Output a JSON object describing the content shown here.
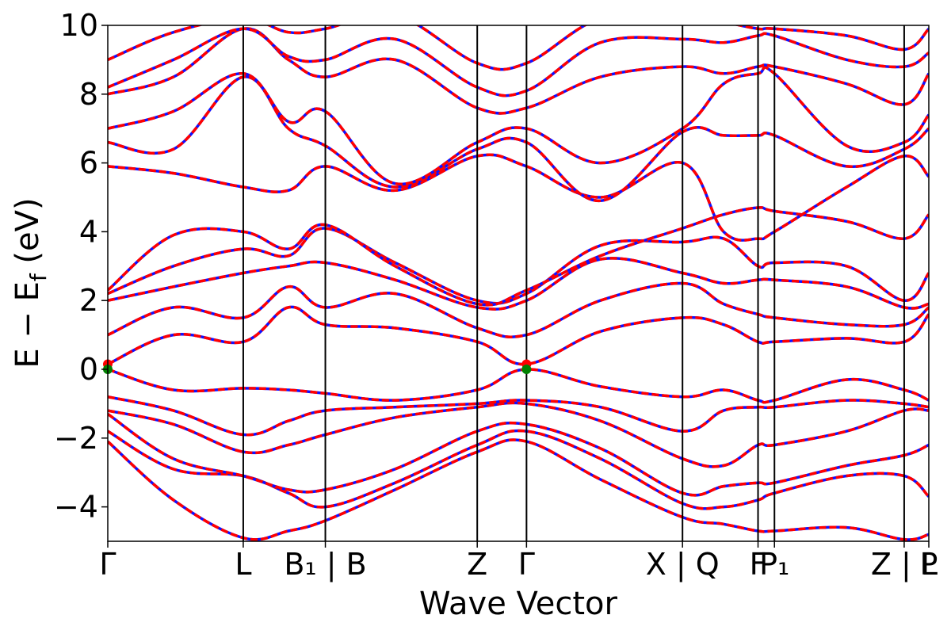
{
  "chart_data": {
    "type": "line",
    "xlabel": "Wave Vector",
    "ylabel": "E − E_f (eV)",
    "ylabel_main": "E  −  E",
    "ylabel_sub": "f",
    "ylabel_unit": " (eV)",
    "ylim": [
      -5,
      10
    ],
    "yticks": [
      -4,
      -2,
      0,
      2,
      4,
      6,
      8,
      10
    ],
    "ytick_labels": [
      "−4",
      "−2",
      "0",
      "2",
      "4",
      "6",
      "8",
      "10"
    ],
    "path_positions": [
      0,
      0.165,
      0.265,
      0.45,
      0.51,
      0.7,
      0.792,
      0.812,
      0.97,
      1.0
    ],
    "xtick_labels": [
      "Γ",
      "L",
      "B₁ | B",
      "Z",
      "Γ",
      "X | Q",
      "F",
      "P₁",
      "Z | L",
      "P"
    ],
    "colors": {
      "dft": "#1010ff",
      "wannier": "#ff0000",
      "vbm": "#008000",
      "cbm": "#ff0000"
    },
    "band_extrema": [
      {
        "label": "CBM",
        "x": 0.0,
        "y": 0.15
      },
      {
        "label": "VBM",
        "x": 0.0,
        "y": 0.0
      },
      {
        "label": "CBM",
        "x": 0.51,
        "y": 0.15
      },
      {
        "label": "VBM",
        "x": 0.51,
        "y": 0.0
      }
    ],
    "bands": [
      {
        "x": [
          0,
          0.08,
          0.165,
          0.22,
          0.265,
          0.35,
          0.45,
          0.51,
          0.6,
          0.7,
          0.75,
          0.792,
          0.812,
          0.9,
          0.97,
          1.0
        ],
        "y": [
          -2.1,
          -3.8,
          -4.9,
          -4.7,
          -4.4,
          -3.5,
          -2.4,
          -2.1,
          -3.2,
          -4.3,
          -4.5,
          -4.7,
          -4.7,
          -4.6,
          -4.95,
          -4.8
        ]
      },
      {
        "x": [
          0,
          0.08,
          0.165,
          0.22,
          0.265,
          0.35,
          0.45,
          0.51,
          0.6,
          0.7,
          0.75,
          0.792,
          0.812,
          0.9,
          0.97,
          1.0
        ],
        "y": [
          -1.8,
          -2.9,
          -3.1,
          -3.6,
          -4.0,
          -3.3,
          -2.2,
          -1.8,
          -2.6,
          -3.9,
          -4.0,
          -3.8,
          -3.6,
          -3.1,
          -3.1,
          -3.7
        ]
      },
      {
        "x": [
          0,
          0.08,
          0.165,
          0.22,
          0.265,
          0.35,
          0.45,
          0.51,
          0.6,
          0.7,
          0.75,
          0.792,
          0.812,
          0.9,
          0.97,
          1.0
        ],
        "y": [
          -1.3,
          -2.6,
          -3.1,
          -3.5,
          -3.5,
          -2.9,
          -1.8,
          -1.6,
          -2.3,
          -3.6,
          -3.4,
          -3.3,
          -3.3,
          -2.8,
          -2.5,
          -2.2
        ]
      },
      {
        "x": [
          0,
          0.08,
          0.165,
          0.22,
          0.265,
          0.35,
          0.45,
          0.51,
          0.6,
          0.7,
          0.75,
          0.792,
          0.812,
          0.9,
          0.97,
          1.0
        ],
        "y": [
          -1.2,
          -1.6,
          -2.4,
          -2.2,
          -1.9,
          -1.4,
          -1.1,
          -1.0,
          -1.5,
          -2.6,
          -2.8,
          -2.2,
          -2.2,
          -1.8,
          -1.2,
          -1.2
        ]
      },
      {
        "x": [
          0,
          0.08,
          0.165,
          0.22,
          0.265,
          0.35,
          0.45,
          0.51,
          0.6,
          0.7,
          0.75,
          0.792,
          0.812,
          0.9,
          0.97,
          1.0
        ],
        "y": [
          -0.8,
          -1.2,
          -1.9,
          -1.5,
          -1.2,
          -1.1,
          -1.0,
          -0.9,
          -1.1,
          -1.8,
          -1.2,
          -1.1,
          -1.1,
          -0.9,
          -1.0,
          -1.1
        ]
      },
      {
        "x": [
          0,
          0.08,
          0.165,
          0.22,
          0.265,
          0.35,
          0.45,
          0.51,
          0.6,
          0.7,
          0.75,
          0.792,
          0.812,
          0.9,
          0.97,
          1.0
        ],
        "y": [
          0.0,
          -0.6,
          -0.55,
          -0.6,
          -0.7,
          -0.9,
          -0.6,
          0.0,
          -0.5,
          -0.8,
          -0.6,
          -0.9,
          -0.9,
          -0.3,
          -0.6,
          -0.9
        ]
      },
      {
        "x": [
          0,
          0.08,
          0.165,
          0.22,
          0.265,
          0.35,
          0.45,
          0.51,
          0.6,
          0.7,
          0.75,
          0.792,
          0.812,
          0.9,
          0.97,
          1.0
        ],
        "y": [
          0.15,
          1.0,
          0.8,
          1.8,
          1.3,
          1.2,
          0.8,
          0.15,
          1.1,
          1.5,
          1.3,
          0.8,
          0.8,
          0.9,
          0.8,
          1.6
        ]
      },
      {
        "x": [
          0,
          0.08,
          0.165,
          0.22,
          0.265,
          0.35,
          0.45,
          0.51,
          0.6,
          0.7,
          0.75,
          0.792,
          0.812,
          0.9,
          0.97,
          1.0
        ],
        "y": [
          1.0,
          1.8,
          1.5,
          2.4,
          1.8,
          2.2,
          1.2,
          1.0,
          2.0,
          2.5,
          1.9,
          1.6,
          1.5,
          1.3,
          1.3,
          1.8
        ]
      },
      {
        "x": [
          0,
          0.08,
          0.165,
          0.22,
          0.265,
          0.35,
          0.45,
          0.51,
          0.6,
          0.7,
          0.75,
          0.792,
          0.812,
          0.9,
          0.97,
          1.0
        ],
        "y": [
          2.0,
          2.4,
          2.8,
          3.0,
          3.1,
          2.6,
          1.8,
          2.0,
          3.2,
          2.8,
          2.5,
          2.6,
          2.6,
          2.4,
          1.8,
          1.9
        ]
      },
      {
        "x": [
          0,
          0.08,
          0.165,
          0.22,
          0.265,
          0.35,
          0.45,
          0.51,
          0.6,
          0.7,
          0.75,
          0.792,
          0.812,
          0.9,
          0.97,
          1.0
        ],
        "y": [
          2.2,
          3.0,
          3.5,
          3.3,
          4.1,
          3.1,
          2.0,
          2.2,
          3.6,
          3.7,
          3.8,
          3.0,
          3.1,
          3.0,
          2.0,
          2.8
        ]
      },
      {
        "x": [
          0,
          0.08,
          0.165,
          0.22,
          0.265,
          0.35,
          0.45,
          0.51,
          0.6,
          0.7,
          0.75,
          0.792,
          0.812,
          0.9,
          0.97,
          1.0
        ],
        "y": [
          2.3,
          3.9,
          4.0,
          3.5,
          4.2,
          3.0,
          1.9,
          2.3,
          3.3,
          4.1,
          4.5,
          4.7,
          4.6,
          4.3,
          3.8,
          4.5
        ]
      },
      {
        "x": [
          0,
          0.08,
          0.165,
          0.22,
          0.265,
          0.35,
          0.45,
          0.51,
          0.6,
          0.7,
          0.75,
          0.792,
          0.812,
          0.9,
          0.97,
          1.0
        ],
        "y": [
          5.9,
          5.7,
          5.3,
          5.2,
          5.9,
          5.2,
          6.2,
          5.9,
          5.0,
          6.0,
          4.0,
          3.8,
          4.0,
          5.3,
          6.2,
          5.6
        ]
      },
      {
        "x": [
          0,
          0.08,
          0.165,
          0.22,
          0.265,
          0.35,
          0.45,
          0.51,
          0.6,
          0.7,
          0.75,
          0.792,
          0.812,
          0.9,
          0.97,
          1.0
        ],
        "y": [
          6.6,
          6.4,
          8.5,
          7.0,
          6.5,
          5.3,
          6.4,
          6.6,
          4.9,
          6.9,
          6.8,
          6.8,
          6.8,
          5.9,
          6.4,
          7.0
        ]
      },
      {
        "x": [
          0,
          0.08,
          0.165,
          0.22,
          0.265,
          0.35,
          0.45,
          0.51,
          0.6,
          0.7,
          0.75,
          0.792,
          0.812,
          0.9,
          0.97,
          1.0
        ],
        "y": [
          7.0,
          7.5,
          8.6,
          7.2,
          7.5,
          5.4,
          6.6,
          7.0,
          6.0,
          7.0,
          8.3,
          8.6,
          8.6,
          6.5,
          6.6,
          7.4
        ]
      },
      {
        "x": [
          0,
          0.08,
          0.165,
          0.22,
          0.265,
          0.35,
          0.45,
          0.51,
          0.6,
          0.7,
          0.75,
          0.792,
          0.812,
          0.9,
          0.97,
          1.0
        ],
        "y": [
          8.0,
          8.5,
          9.9,
          9.0,
          8.5,
          9.0,
          7.6,
          7.6,
          8.5,
          8.8,
          8.6,
          8.8,
          8.8,
          8.3,
          7.7,
          8.6
        ]
      },
      {
        "x": [
          0,
          0.08,
          0.165,
          0.22,
          0.265,
          0.35,
          0.45,
          0.51,
          0.6,
          0.7,
          0.75,
          0.792,
          0.812,
          0.9,
          0.97,
          1.0
        ],
        "y": [
          8.2,
          9.0,
          9.9,
          9.1,
          9.0,
          9.6,
          8.2,
          8.1,
          9.5,
          9.6,
          9.5,
          9.7,
          9.7,
          9.0,
          8.8,
          9.2
        ]
      },
      {
        "x": [
          0,
          0.08,
          0.165,
          0.22,
          0.265,
          0.35,
          0.45,
          0.51,
          0.6,
          0.7,
          0.75,
          0.792,
          0.812,
          0.9,
          0.97,
          1.0
        ],
        "y": [
          9.0,
          9.8,
          10.2,
          9.8,
          9.9,
          10.3,
          8.9,
          8.9,
          10.2,
          10.3,
          10.1,
          9.9,
          9.9,
          9.7,
          9.3,
          9.9
        ]
      }
    ]
  }
}
